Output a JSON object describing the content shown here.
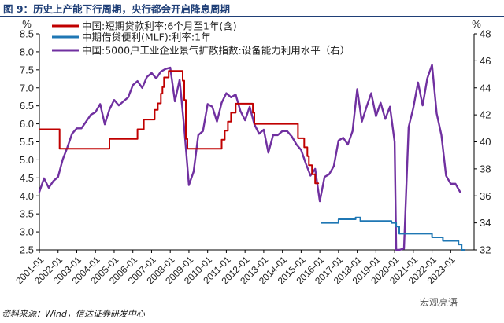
{
  "header": {
    "title": "图 9：历史上产能下行周期，央行都会开启降息周期"
  },
  "footer": {
    "source": "资料来源：Wind，信达证券研发中心",
    "watermark": "宏观亮语"
  },
  "chart_data": {
    "type": "line",
    "title": "图 9：历史上产能下行周期，央行都会开启降息周期",
    "y_left": {
      "unit": "%",
      "min": 2.5,
      "max": 8.5,
      "ticks": [
        "2.5",
        "3.0",
        "3.5",
        "4.0",
        "4.5",
        "5.0",
        "5.5",
        "6.0",
        "6.5",
        "7.0",
        "7.5",
        "8.0",
        "8.5"
      ]
    },
    "y_right": {
      "unit": "%",
      "min": 32,
      "max": 48,
      "ticks": [
        "32",
        "34",
        "36",
        "38",
        "40",
        "42",
        "44",
        "46",
        "48"
      ]
    },
    "x_range": [
      2001.0,
      2024.25
    ],
    "x_ticks": [
      "2001-01",
      "2002-01",
      "2003-01",
      "2004-01",
      "2005-01",
      "2006-01",
      "2007-01",
      "2008-01",
      "2009-01",
      "2010-01",
      "2011-01",
      "2012-01",
      "2013-01",
      "2014-01",
      "2015-01",
      "2016-01",
      "2017-01",
      "2018-01",
      "2019-01",
      "2020-01",
      "2021-01",
      "2022-01",
      "2023-01"
    ],
    "legend_position": "top-left",
    "grid": false,
    "series": [
      {
        "name": "中国:短期贷款利率:6个月至1年(含)",
        "axis": "left",
        "color": "#c00000",
        "step": true,
        "points": [
          [
            "2001-01",
            5.85
          ],
          [
            "2002-02",
            5.31
          ],
          [
            "2004-10",
            5.58
          ],
          [
            "2006-04",
            5.85
          ],
          [
            "2006-08",
            6.12
          ],
          [
            "2007-03",
            6.39
          ],
          [
            "2007-05",
            6.57
          ],
          [
            "2007-07",
            6.84
          ],
          [
            "2007-08",
            7.02
          ],
          [
            "2007-09",
            7.29
          ],
          [
            "2007-12",
            7.47
          ],
          [
            "2008-09",
            7.2
          ],
          [
            "2008-10",
            6.93
          ],
          [
            "2008-10",
            6.66
          ],
          [
            "2008-11",
            5.58
          ],
          [
            "2008-12",
            5.31
          ],
          [
            "2010-10",
            5.56
          ],
          [
            "2010-12",
            5.81
          ],
          [
            "2011-02",
            6.06
          ],
          [
            "2011-04",
            6.31
          ],
          [
            "2011-07",
            6.56
          ],
          [
            "2012-06",
            6.31
          ],
          [
            "2012-07",
            6.0
          ],
          [
            "2014-11",
            5.6
          ],
          [
            "2015-03",
            5.35
          ],
          [
            "2015-05",
            5.1
          ],
          [
            "2015-06",
            4.85
          ],
          [
            "2015-08",
            4.6
          ],
          [
            "2015-10",
            4.35
          ],
          [
            "2015-12",
            4.35
          ]
        ]
      },
      {
        "name": "中期借贷便利(MLF):利率:1年",
        "axis": "left",
        "color": "#1f77b4",
        "step": true,
        "points": [
          [
            "2016-02",
            3.25
          ],
          [
            "2017-01",
            3.35
          ],
          [
            "2017-12",
            3.4
          ],
          [
            "2018-03",
            3.3
          ],
          [
            "2018-10",
            3.3
          ],
          [
            "2019-06",
            3.3
          ],
          [
            "2019-09",
            3.3
          ],
          [
            "2019-11",
            3.25
          ],
          [
            "2020-02",
            3.15
          ],
          [
            "2020-04",
            2.95
          ],
          [
            "2022-01",
            2.85
          ],
          [
            "2022-08",
            2.75
          ],
          [
            "2023-06",
            2.65
          ],
          [
            "2023-08",
            2.5
          ],
          [
            "2023-10",
            2.5
          ]
        ]
      },
      {
        "name": "中国:5000户工业企业景气扩散指数:设备能力利用水平（右）",
        "axis": "right",
        "color": "#7030a0",
        "step": false,
        "points": [
          [
            "2001-01",
            36.3
          ],
          [
            "2001-04",
            37.3
          ],
          [
            "2001-07",
            36.6
          ],
          [
            "2001-10",
            37.1
          ],
          [
            "2002-01",
            37.4
          ],
          [
            "2002-04",
            38.7
          ],
          [
            "2002-07",
            39.6
          ],
          [
            "2002-10",
            40.6
          ],
          [
            "2003-01",
            41.0
          ],
          [
            "2003-04",
            41.0
          ],
          [
            "2003-07",
            41.5
          ],
          [
            "2003-10",
            42.0
          ],
          [
            "2004-01",
            42.2
          ],
          [
            "2004-04",
            42.8
          ],
          [
            "2004-07",
            41.3
          ],
          [
            "2004-10",
            42.4
          ],
          [
            "2005-01",
            43.1
          ],
          [
            "2005-04",
            42.7
          ],
          [
            "2005-07",
            43.0
          ],
          [
            "2005-10",
            43.3
          ],
          [
            "2006-01",
            44.2
          ],
          [
            "2006-04",
            44.5
          ],
          [
            "2006-07",
            44.0
          ],
          [
            "2006-10",
            44.8
          ],
          [
            "2007-01",
            45.1
          ],
          [
            "2007-04",
            44.7
          ],
          [
            "2007-07",
            45.2
          ],
          [
            "2007-10",
            45.4
          ],
          [
            "2008-01",
            45.5
          ],
          [
            "2008-04",
            43.0
          ],
          [
            "2008-07",
            44.6
          ],
          [
            "2008-10",
            41.0
          ],
          [
            "2009-01",
            36.8
          ],
          [
            "2009-04",
            37.8
          ],
          [
            "2009-07",
            40.5
          ],
          [
            "2009-10",
            40.8
          ],
          [
            "2010-01",
            42.8
          ],
          [
            "2010-04",
            42.6
          ],
          [
            "2010-07",
            41.5
          ],
          [
            "2010-10",
            42.9
          ],
          [
            "2011-01",
            43.6
          ],
          [
            "2011-04",
            43.3
          ],
          [
            "2011-07",
            43.5
          ],
          [
            "2011-10",
            42.3
          ],
          [
            "2012-01",
            41.6
          ],
          [
            "2012-04",
            42.6
          ],
          [
            "2012-07",
            41.3
          ],
          [
            "2012-10",
            40.6
          ],
          [
            "2013-01",
            40.9
          ],
          [
            "2013-04",
            39.2
          ],
          [
            "2013-07",
            40.5
          ],
          [
            "2013-10",
            40.5
          ],
          [
            "2014-01",
            40.8
          ],
          [
            "2014-04",
            40.8
          ],
          [
            "2014-07",
            40.4
          ],
          [
            "2014-10",
            39.8
          ],
          [
            "2015-01",
            39.4
          ],
          [
            "2015-04",
            38.4
          ],
          [
            "2015-07",
            37.5
          ],
          [
            "2015-10",
            38.0
          ],
          [
            "2016-01",
            35.6
          ],
          [
            "2016-04",
            37.4
          ],
          [
            "2016-07",
            37.6
          ],
          [
            "2016-10",
            38.2
          ],
          [
            "2017-01",
            40.1
          ],
          [
            "2017-04",
            40.3
          ],
          [
            "2017-07",
            39.8
          ],
          [
            "2017-10",
            40.8
          ],
          [
            "2018-01",
            43.9
          ],
          [
            "2018-04",
            41.5
          ],
          [
            "2018-07",
            42.6
          ],
          [
            "2018-10",
            43.6
          ],
          [
            "2019-01",
            41.9
          ],
          [
            "2019-04",
            42.9
          ],
          [
            "2019-07",
            41.7
          ],
          [
            "2019-10",
            42.6
          ],
          [
            "2020-01",
            40.0
          ],
          [
            "2020-02",
            32.0
          ],
          [
            "2020-03",
            32.0
          ],
          [
            "2020-04",
            32.0
          ],
          [
            "2020-07",
            32.1
          ],
          [
            "2020-10",
            41.1
          ],
          [
            "2021-01",
            42.5
          ],
          [
            "2021-04",
            44.4
          ],
          [
            "2021-07",
            42.7
          ],
          [
            "2021-10",
            44.7
          ],
          [
            "2022-01",
            45.7
          ],
          [
            "2022-04",
            42.1
          ],
          [
            "2022-07",
            40.5
          ],
          [
            "2022-10",
            37.5
          ],
          [
            "2023-01",
            36.9
          ],
          [
            "2023-04",
            36.9
          ],
          [
            "2023-07",
            36.3
          ]
        ]
      }
    ]
  }
}
